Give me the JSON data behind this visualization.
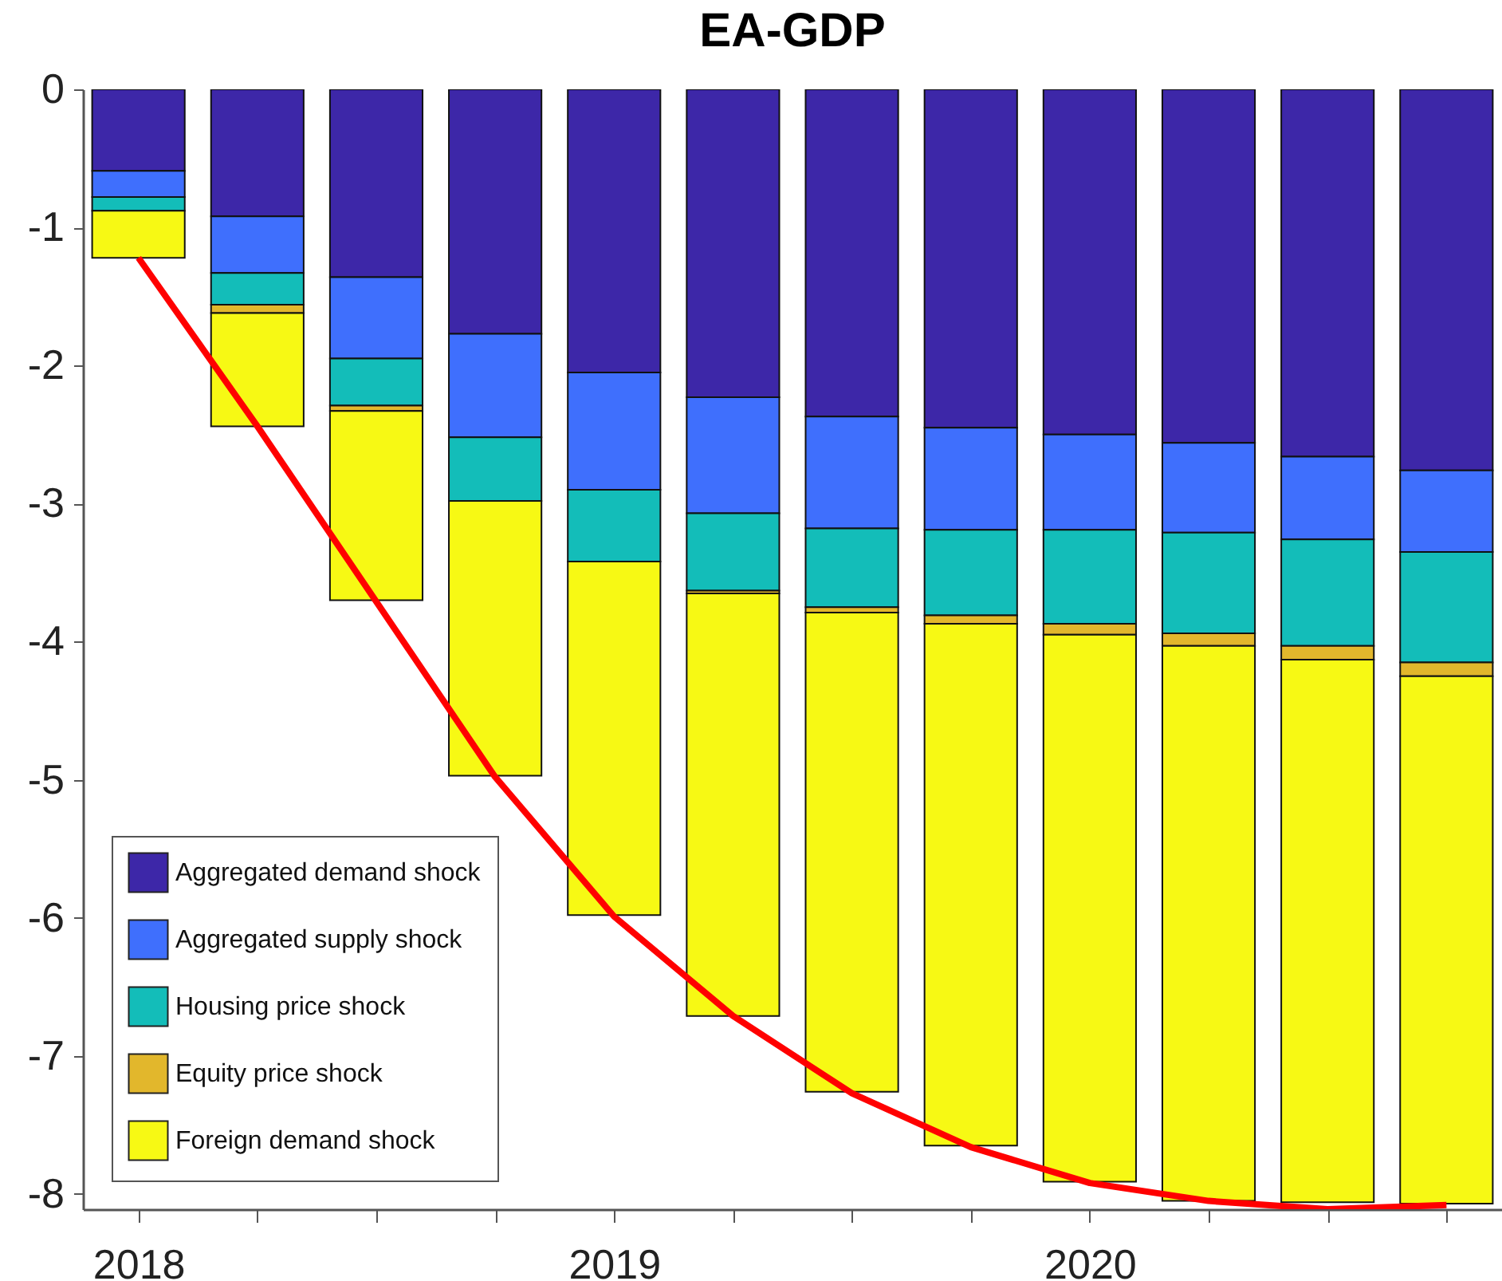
{
  "chart_data": {
    "type": "bar",
    "title": "EA-GDP",
    "stacked": true,
    "x": [
      2018,
      2018.25,
      2018.5,
      2018.75,
      2019,
      2019.25,
      2019.5,
      2019.75,
      2020,
      2020.25,
      2020.5,
      2020.75
    ],
    "series": [
      {
        "name": "Aggregated demand shock",
        "color": "#3d27a8",
        "values": [
          -0.59,
          -0.92,
          -1.36,
          -1.77,
          -2.05,
          -2.23,
          -2.37,
          -2.45,
          -2.5,
          -2.56,
          -2.66,
          -2.76
        ]
      },
      {
        "name": "Aggregated supply shock",
        "color": "#3f6ffd",
        "values": [
          -0.19,
          -0.41,
          -0.59,
          -0.75,
          -0.85,
          -0.84,
          -0.81,
          -0.74,
          -0.69,
          -0.65,
          -0.6,
          -0.59
        ]
      },
      {
        "name": "Housing price shock",
        "color": "#13bdb9",
        "values": [
          -0.1,
          -0.23,
          -0.34,
          -0.46,
          -0.52,
          -0.56,
          -0.57,
          -0.62,
          -0.68,
          -0.73,
          -0.77,
          -0.8
        ]
      },
      {
        "name": "Equity price shock",
        "color": "#e2b72c",
        "values": [
          null,
          -0.06,
          -0.04,
          null,
          null,
          -0.02,
          -0.04,
          -0.06,
          -0.08,
          -0.09,
          -0.1,
          -0.1
        ]
      },
      {
        "name": "Foreign demand shock",
        "color": "#f7f914",
        "values": [
          -0.34,
          -0.82,
          -1.37,
          -1.99,
          -2.56,
          -3.06,
          -3.47,
          -3.78,
          -3.96,
          -4.02,
          -3.93,
          -3.82
        ]
      },
      {
        "type": "line",
        "color": "#ff0000",
        "values": [
          -1.22,
          -2.44,
          -3.71,
          -4.98,
          -5.99,
          -6.71,
          -7.27,
          -7.66,
          -7.92,
          -8.05,
          -8.11,
          -8.08
        ]
      }
    ],
    "xlim": [
      2017.9,
      2020.85
    ],
    "xticks": [
      2018,
      {
        "value": 2018.25,
        "label": null
      },
      {
        "value": 2018.5,
        "label": null
      },
      {
        "value": 2018.75,
        "label": null
      },
      2019,
      {
        "value": 2019.25,
        "label": null
      },
      {
        "value": 2019.5,
        "label": null
      },
      {
        "value": 2019.75,
        "label": null
      },
      2020,
      {
        "value": 2020.25,
        "label": null
      },
      {
        "value": 2020.5,
        "label": null
      },
      {
        "value": 2020.75,
        "label": null
      }
    ],
    "ylim": [
      -8.11,
      0
    ],
    "yticks": [
      -8,
      -7,
      -6,
      -5,
      -4,
      -3,
      -2,
      -1,
      0
    ],
    "grid": false,
    "legend": "bottom left"
  }
}
